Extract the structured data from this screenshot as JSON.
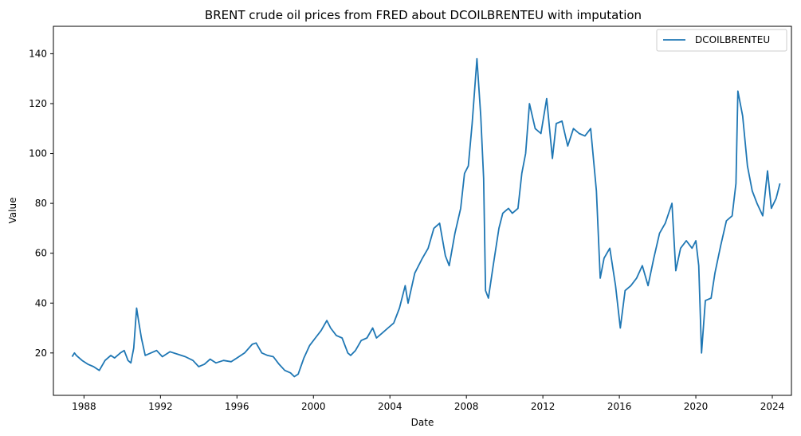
{
  "chart_data": {
    "type": "line",
    "title": "BRENT crude oil prices from FRED about DCOILBRENTEU with imputation",
    "xlabel": "Date",
    "ylabel": "Value",
    "xlim": [
      1986.4,
      2025.0
    ],
    "ylim": [
      3.0,
      151.0
    ],
    "x_ticks": [
      1988,
      1992,
      1996,
      2000,
      2004,
      2008,
      2012,
      2016,
      2020,
      2024
    ],
    "y_ticks": [
      20,
      40,
      60,
      80,
      100,
      120,
      140
    ],
    "grid": false,
    "legend_position": "top-right",
    "series": [
      {
        "name": "DCOILBRENTEU",
        "color": "#1f77b4",
        "x": [
          1987.38,
          1987.5,
          1987.6,
          1987.75,
          1987.9,
          1988.2,
          1988.5,
          1988.8,
          1989.1,
          1989.4,
          1989.6,
          1989.9,
          1990.1,
          1990.3,
          1990.45,
          1990.6,
          1990.75,
          1990.85,
          1991.0,
          1991.2,
          1991.5,
          1991.8,
          1992.1,
          1992.5,
          1992.9,
          1993.3,
          1993.7,
          1994.0,
          1994.3,
          1994.6,
          1994.9,
          1995.3,
          1995.7,
          1996.0,
          1996.4,
          1996.8,
          1997.0,
          1997.3,
          1997.6,
          1997.9,
          1998.2,
          1998.5,
          1998.8,
          1999.0,
          1999.2,
          1999.5,
          1999.8,
          2000.1,
          2000.4,
          2000.7,
          2000.9,
          2001.2,
          2001.5,
          2001.8,
          2001.95,
          2002.2,
          2002.5,
          2002.8,
          2003.1,
          2003.3,
          2003.6,
          2003.9,
          2004.2,
          2004.5,
          2004.8,
          2004.95,
          2005.3,
          2005.7,
          2006.0,
          2006.3,
          2006.6,
          2006.9,
          2007.1,
          2007.4,
          2007.7,
          2007.9,
          2008.1,
          2008.3,
          2008.55,
          2008.75,
          2008.9,
          2009.0,
          2009.15,
          2009.4,
          2009.7,
          2009.9,
          2010.2,
          2010.4,
          2010.7,
          2010.9,
          2011.1,
          2011.3,
          2011.6,
          2011.9,
          2012.2,
          2012.5,
          2012.7,
          2013.0,
          2013.3,
          2013.6,
          2013.9,
          2014.2,
          2014.5,
          2014.8,
          2015.0,
          2015.2,
          2015.5,
          2015.8,
          2016.05,
          2016.3,
          2016.6,
          2016.9,
          2017.2,
          2017.5,
          2017.8,
          2018.1,
          2018.4,
          2018.75,
          2018.95,
          2019.2,
          2019.5,
          2019.8,
          2020.0,
          2020.15,
          2020.3,
          2020.5,
          2020.8,
          2021.0,
          2021.3,
          2021.6,
          2021.9,
          2022.1,
          2022.2,
          2022.45,
          2022.7,
          2022.95,
          2023.2,
          2023.5,
          2023.75,
          2023.95,
          2024.2,
          2024.4
        ],
        "y": [
          18.5,
          20.0,
          19.0,
          18.0,
          17.0,
          15.5,
          14.5,
          13.0,
          17.0,
          19.0,
          18.0,
          20.0,
          21.0,
          17.0,
          16.0,
          22.0,
          38.0,
          33.0,
          26.0,
          19.0,
          20.0,
          21.0,
          18.5,
          20.5,
          19.5,
          18.5,
          17.0,
          14.5,
          15.5,
          17.5,
          16.0,
          17.0,
          16.5,
          18.0,
          20.0,
          23.5,
          24.0,
          20.0,
          19.0,
          18.5,
          15.5,
          13.0,
          12.0,
          10.5,
          11.5,
          18.0,
          23.0,
          26.0,
          29.0,
          33.0,
          30.0,
          27.0,
          26.0,
          20.0,
          19.0,
          21.0,
          25.0,
          26.0,
          30.0,
          26.0,
          28.0,
          30.0,
          32.0,
          38.0,
          47.0,
          40.0,
          52.0,
          58.0,
          62.0,
          70.0,
          72.0,
          59.0,
          55.0,
          68.0,
          78.0,
          92.0,
          95.0,
          112.0,
          138.0,
          115.0,
          90.0,
          45.0,
          42.0,
          55.0,
          70.0,
          76.0,
          78.0,
          76.0,
          78.0,
          92.0,
          100.0,
          120.0,
          110.0,
          108.0,
          122.0,
          98.0,
          112.0,
          113.0,
          103.0,
          110.0,
          108.0,
          107.0,
          110.0,
          85.0,
          50.0,
          58.0,
          62.0,
          47.0,
          30.0,
          45.0,
          47.0,
          50.0,
          55.0,
          47.0,
          58.0,
          68.0,
          72.0,
          80.0,
          53.0,
          62.0,
          65.0,
          62.0,
          65.0,
          55.0,
          20.0,
          41.0,
          42.0,
          52.0,
          63.0,
          73.0,
          75.0,
          88.0,
          125.0,
          115.0,
          95.0,
          85.0,
          80.0,
          75.0,
          93.0,
          78.0,
          82.0,
          88.0
        ]
      }
    ]
  }
}
